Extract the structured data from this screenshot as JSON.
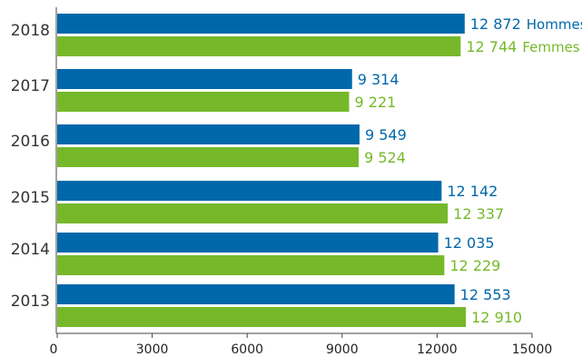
{
  "chart_data": {
    "type": "bar",
    "orientation": "horizontal",
    "categories": [
      "2018",
      "2017",
      "2016",
      "2015",
      "2014",
      "2013"
    ],
    "series": [
      {
        "name": "Hommes",
        "color": "#0068AA",
        "values": [
          12872,
          9314,
          9549,
          12142,
          12035,
          12553
        ],
        "labels": [
          "12 872",
          "9 314",
          "9 549",
          "12 142",
          "12 035",
          "12 553"
        ]
      },
      {
        "name": "Femmes",
        "color": "#76B82A",
        "values": [
          12744,
          9221,
          9524,
          12337,
          12229,
          12910
        ],
        "labels": [
          "12 744",
          "9 221",
          "9 524",
          "12 337",
          "12 229",
          "12 910"
        ]
      }
    ],
    "xlim": [
      0,
      15000
    ],
    "xticks": [
      "0",
      "3000",
      "6000",
      "9000",
      "12000",
      "15000"
    ],
    "xtick_values": [
      0,
      3000,
      6000,
      9000,
      12000,
      15000
    ],
    "legend": "inline labels next to 2018 bars",
    "grid": false
  }
}
